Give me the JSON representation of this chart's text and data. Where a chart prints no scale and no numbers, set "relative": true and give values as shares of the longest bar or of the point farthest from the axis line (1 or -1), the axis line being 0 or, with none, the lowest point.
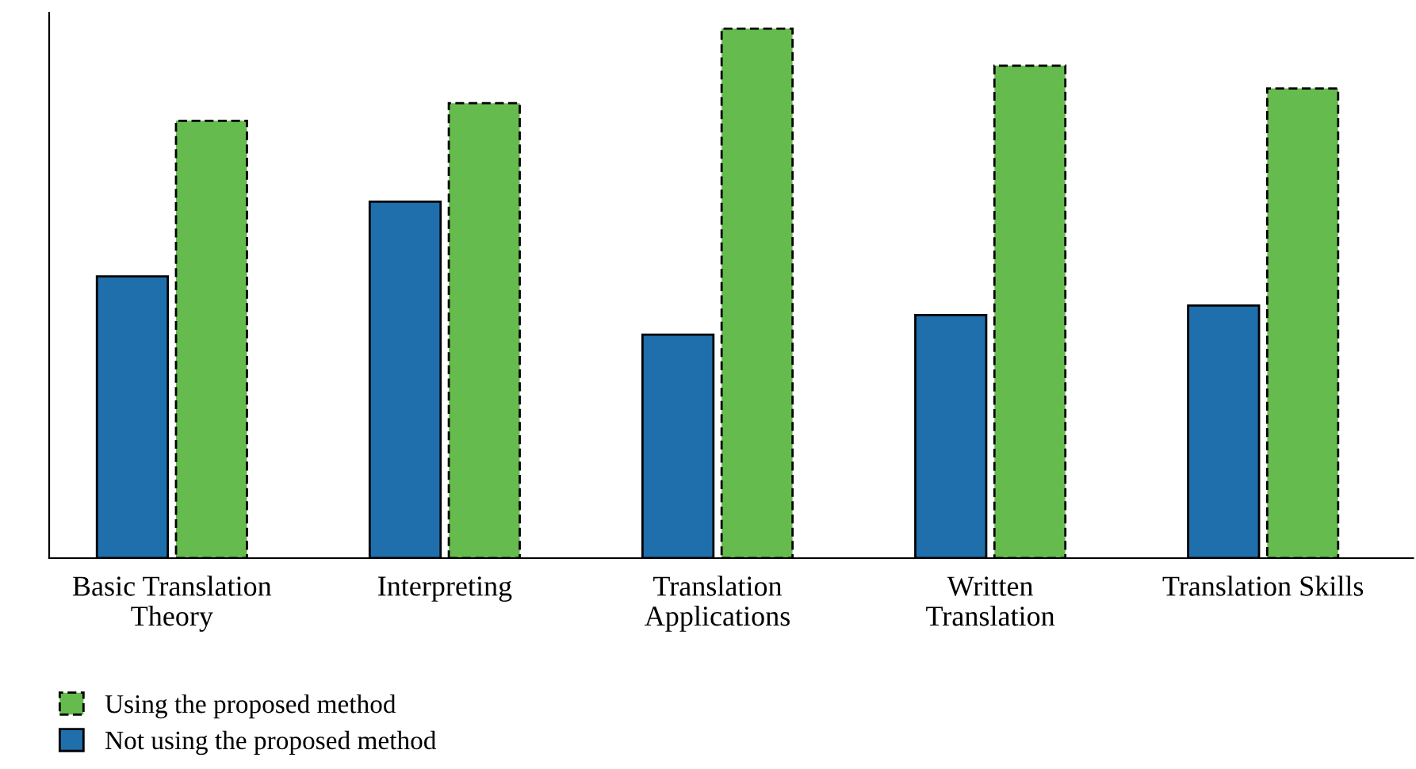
{
  "chart_data": {
    "type": "bar",
    "relative": true,
    "categories": [
      "Basic Translation\nTheory",
      "Interpreting",
      "Translation\nApplications",
      "Written\nTranslation",
      "Translation Skills"
    ],
    "series": [
      {
        "name": "Not using the proposed method",
        "color": "#1f6fad",
        "line_style": "solid",
        "values": [
          0.532,
          0.673,
          0.422,
          0.459,
          0.477
        ]
      },
      {
        "name": "Using the proposed method",
        "color": "#66bb4e",
        "line_style": "dashed",
        "values": [
          0.826,
          0.859,
          1,
          0.93,
          0.887
        ]
      }
    ],
    "legend": "bottom left",
    "grid": false
  }
}
